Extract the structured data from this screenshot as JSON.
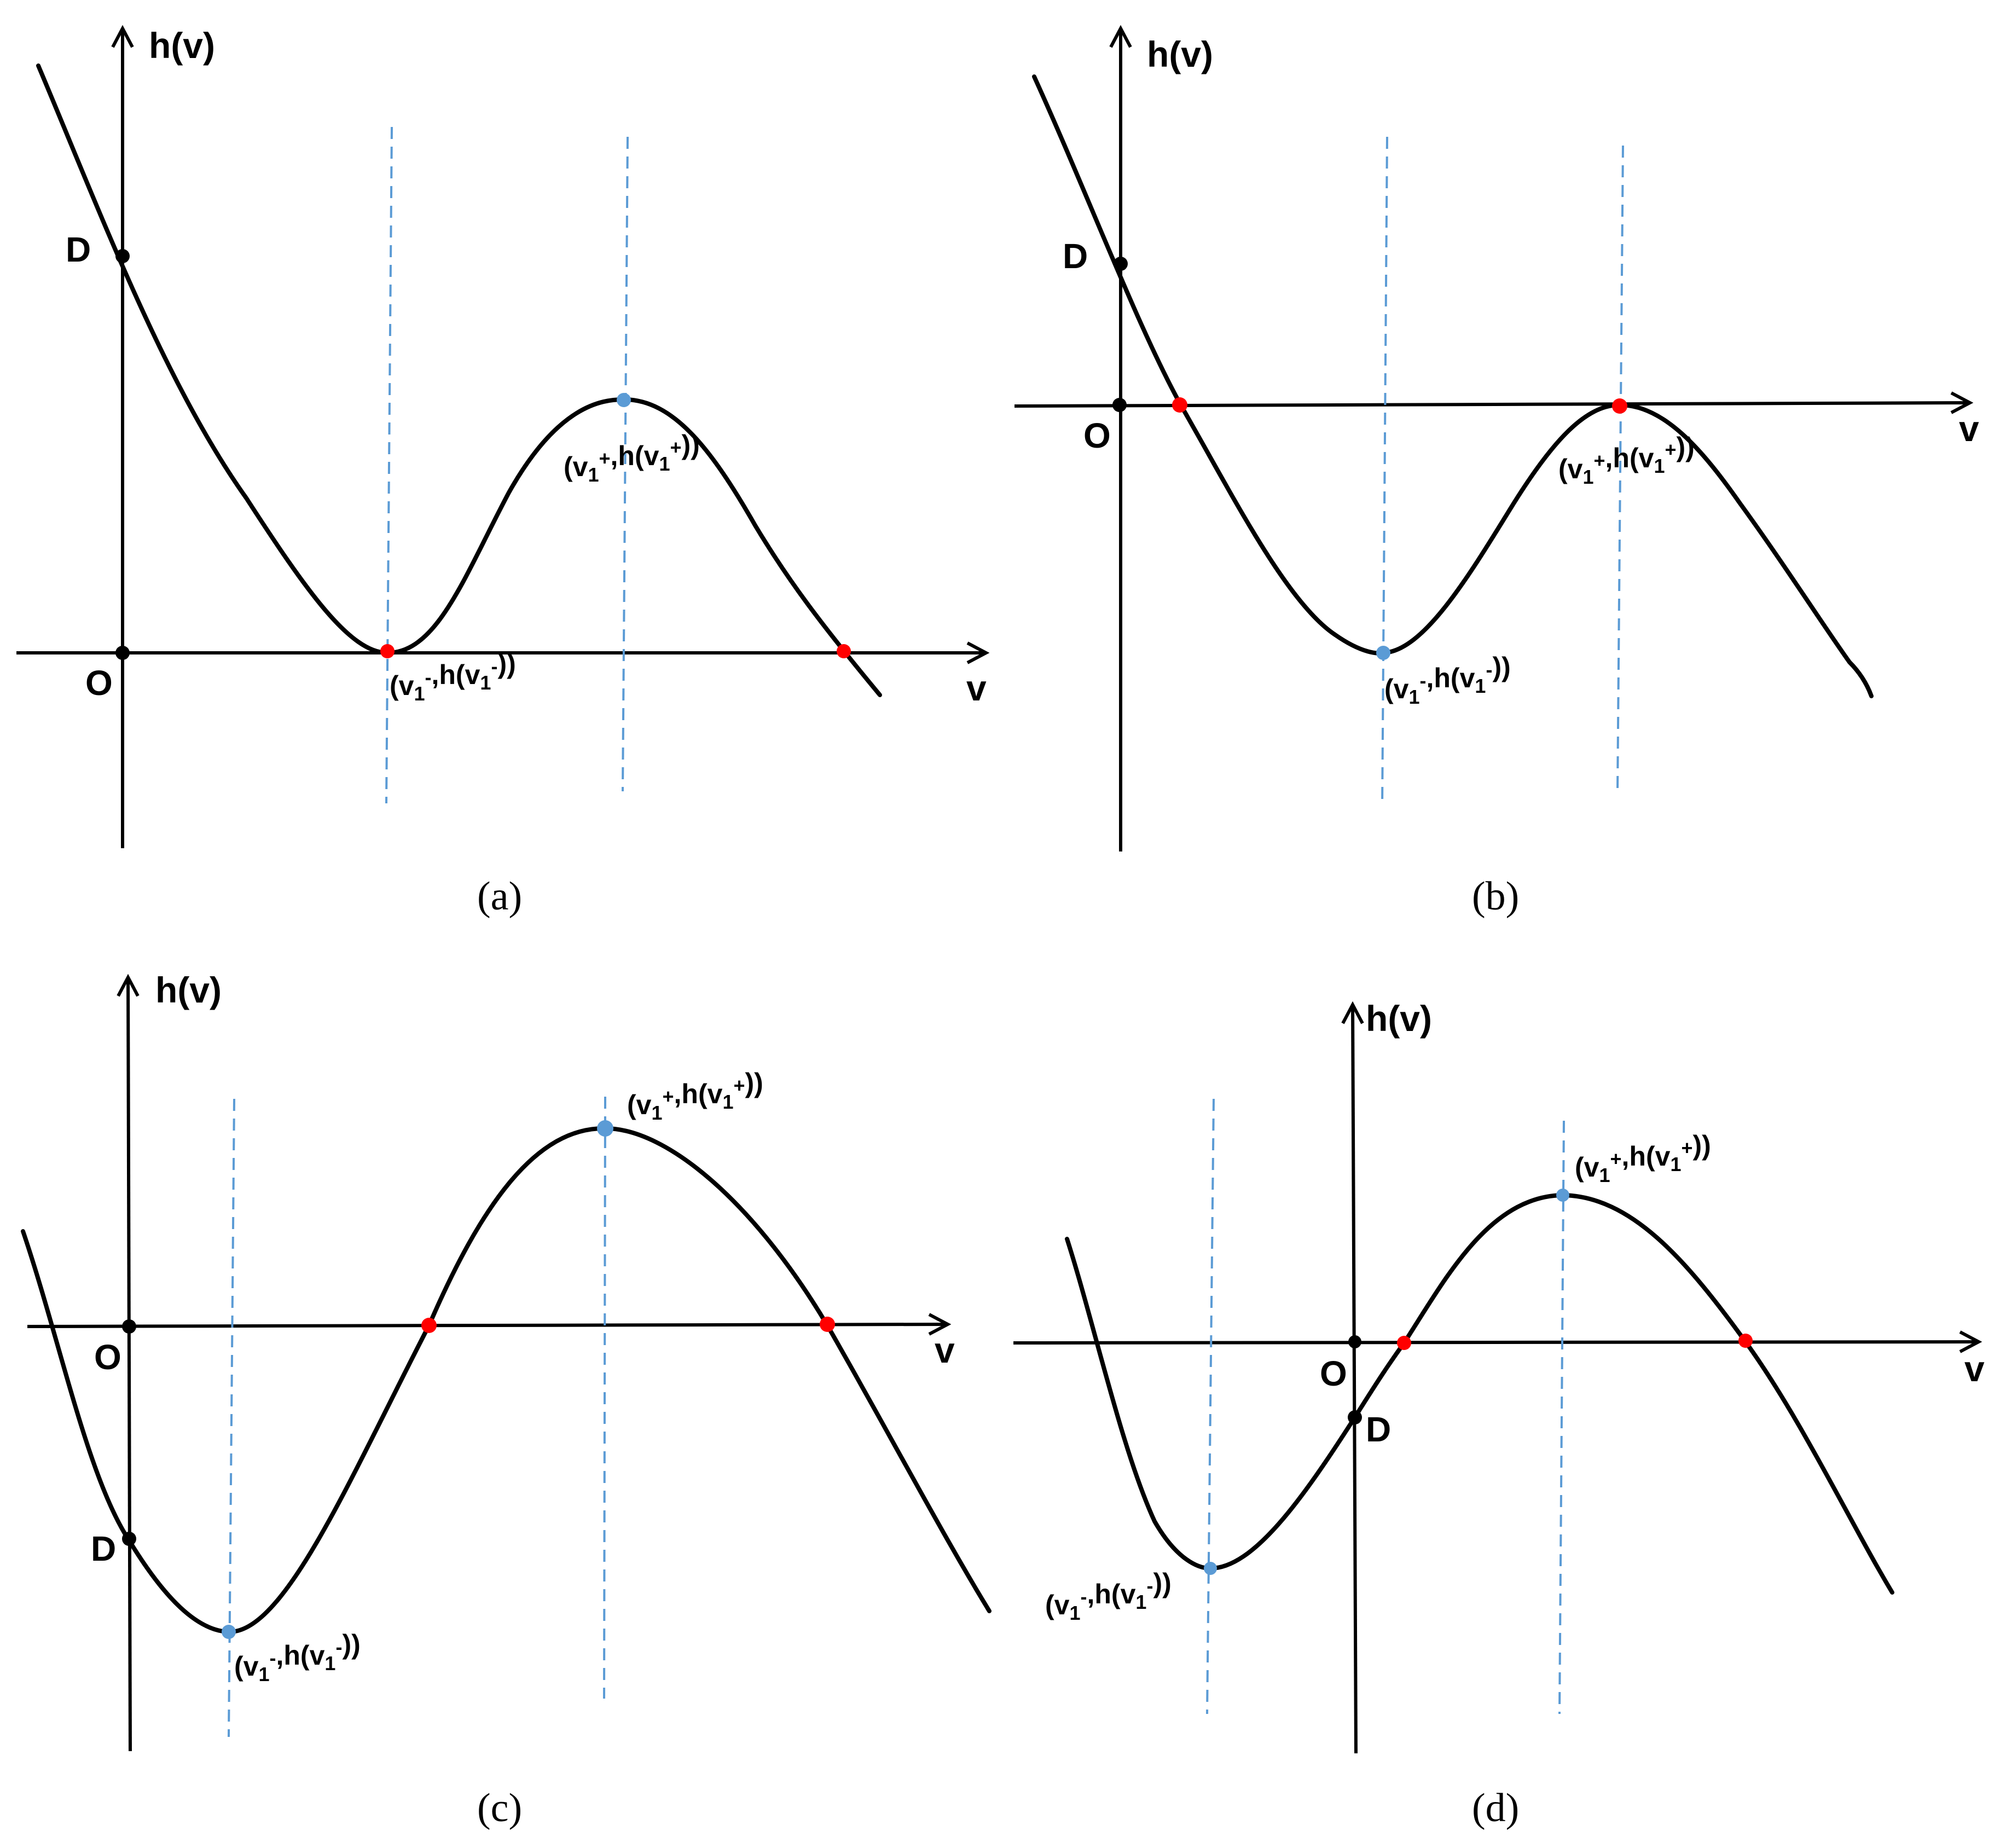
{
  "colors": {
    "curve": "#000000",
    "guide": "#5b9bd5",
    "extremum_point": "#5b9bd5",
    "root_point": "#ff0000",
    "intercept_point": "#000000"
  },
  "panels": [
    {
      "caption": "(a)",
      "y_axis_label": "h(v)",
      "x_axis_label": "v",
      "origin_label": "O",
      "intercept_label": "D",
      "min_label": "(v1-,h(v1-))",
      "max_label": "(v1+,h(v1+))"
    },
    {
      "caption": "(b)",
      "y_axis_label": "h(v)",
      "x_axis_label": "v",
      "origin_label": "O",
      "intercept_label": "D",
      "min_label": "(v1-,h(v1-))",
      "max_label": "(v1+,h(v1+))"
    },
    {
      "caption": "(c)",
      "y_axis_label": "h(v)",
      "x_axis_label": "v",
      "origin_label": "O",
      "intercept_label": "D",
      "min_label": "(v1-,h(v1-))",
      "max_label": "(v1+,h(v1+))"
    },
    {
      "caption": "(d)",
      "y_axis_label": "h(v)",
      "x_axis_label": "v",
      "origin_label": "O",
      "intercept_label": "D",
      "min_label": "(v1-,h(v1-))",
      "max_label": "(v1+,h(v1+))"
    }
  ]
}
